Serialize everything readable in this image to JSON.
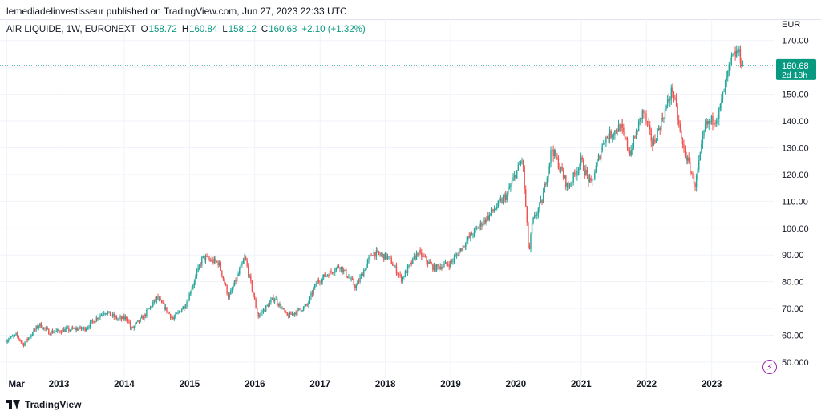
{
  "publisher_line": "lemediadelinvestisseur published on TradingView.com, Jun 27, 2023 22:33 UTC",
  "legend": {
    "symbol": "AIR LIQUIDE, 1W, EURONEXT",
    "open_label": "O",
    "open": "158.72",
    "high_label": "H",
    "high": "160.84",
    "low_label": "L",
    "low": "158.12",
    "close_label": "C",
    "close": "160.68",
    "change": "+2.10 (+1.32%)"
  },
  "price_tag": {
    "price": "160.68",
    "countdown": "2d 18h"
  },
  "footer": {
    "brand": "TradingView"
  },
  "colors": {
    "up": "#26a69a",
    "down": "#ef5350",
    "grid": "#f0f3fa",
    "tag": "#089981",
    "last_line": "#089981"
  },
  "icons": {
    "lightning": "lightning-icon",
    "logo": "tradingview-logo-icon"
  },
  "chart_data": {
    "type": "candlestick",
    "currency": "EUR",
    "interval": "1W",
    "y_ticks": [
      50,
      60,
      70,
      80,
      90,
      100,
      110,
      120,
      130,
      140,
      150,
      160,
      170
    ],
    "y_tick_labels": [
      "50.000",
      "60.00",
      "70.00",
      "80.00",
      "90.00",
      "100.00",
      "110.00",
      "120.00",
      "130.00",
      "140.00",
      "150.00",
      "",
      "170.00"
    ],
    "ylim": [
      44,
      172
    ],
    "x_tick_labels": [
      "Mar",
      "2013",
      "2014",
      "2015",
      "2016",
      "2017",
      "2018",
      "2019",
      "2020",
      "2021",
      "2022",
      "2023"
    ],
    "x_tick_years": [
      2012.2,
      2013,
      2014,
      2015,
      2016,
      2017,
      2018,
      2019,
      2020,
      2021,
      2022,
      2023
    ],
    "xlim": [
      2012.17,
      2023.95
    ],
    "last_price": 160.68,
    "price_path": [
      [
        2012.17,
        58
      ],
      [
        2012.35,
        60
      ],
      [
        2012.45,
        56.5
      ],
      [
        2012.7,
        64
      ],
      [
        2012.85,
        61
      ],
      [
        2013.1,
        62
      ],
      [
        2013.4,
        62.5
      ],
      [
        2013.7,
        69
      ],
      [
        2013.9,
        66
      ],
      [
        2014.05,
        66.5
      ],
      [
        2014.1,
        62
      ],
      [
        2014.3,
        67
      ],
      [
        2014.5,
        74
      ],
      [
        2014.75,
        66
      ],
      [
        2014.95,
        72
      ],
      [
        2015.2,
        89
      ],
      [
        2015.45,
        87
      ],
      [
        2015.6,
        74
      ],
      [
        2015.85,
        89
      ],
      [
        2015.95,
        78
      ],
      [
        2016.05,
        67
      ],
      [
        2016.3,
        74
      ],
      [
        2016.5,
        67
      ],
      [
        2016.8,
        71
      ],
      [
        2016.95,
        80
      ],
      [
        2017.3,
        86
      ],
      [
        2017.55,
        78
      ],
      [
        2017.8,
        91
      ],
      [
        2018.05,
        89
      ],
      [
        2018.25,
        81
      ],
      [
        2018.5,
        91
      ],
      [
        2018.75,
        85
      ],
      [
        2019.0,
        87
      ],
      [
        2019.3,
        97
      ],
      [
        2019.6,
        105
      ],
      [
        2019.85,
        112
      ],
      [
        2020.1,
        126
      ],
      [
        2020.2,
        90
      ],
      [
        2020.25,
        102
      ],
      [
        2020.4,
        110
      ],
      [
        2020.55,
        130
      ],
      [
        2020.8,
        115
      ],
      [
        2021.0,
        125
      ],
      [
        2021.15,
        116
      ],
      [
        2021.35,
        133
      ],
      [
        2021.6,
        138
      ],
      [
        2021.75,
        128
      ],
      [
        2021.95,
        144
      ],
      [
        2022.1,
        131
      ],
      [
        2022.4,
        152
      ],
      [
        2022.55,
        131
      ],
      [
        2022.75,
        116
      ],
      [
        2022.9,
        138
      ],
      [
        2023.1,
        142
      ],
      [
        2023.3,
        163
      ],
      [
        2023.4,
        166
      ],
      [
        2023.48,
        160.68
      ]
    ]
  }
}
